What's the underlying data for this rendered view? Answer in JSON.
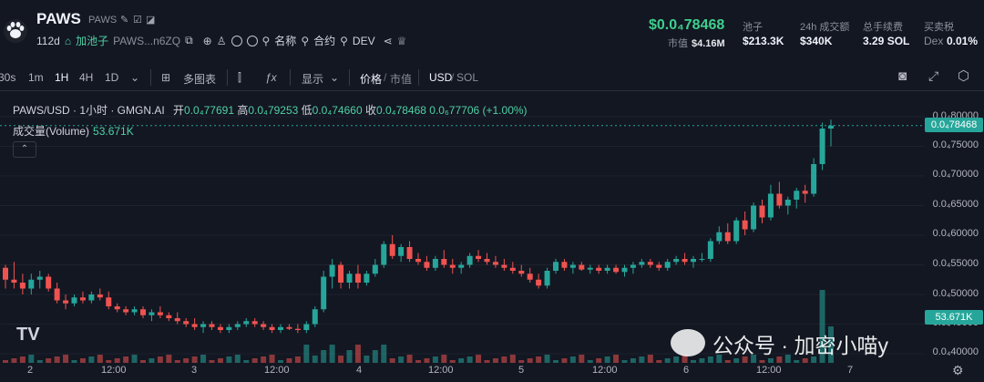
{
  "header": {
    "title": "PAWS",
    "subtitle": "PAWS",
    "age": "112d",
    "pool_tag": "加池子",
    "address": "PAWS...n6ZQ",
    "name_label": "名称",
    "contract_label": "合约",
    "dev_label": "DEV",
    "price": "$0.0₄78468",
    "mcap_label": "市值",
    "mcap_value": "$4.16M",
    "stats": [
      {
        "label": "池子",
        "value": "$213.3K"
      },
      {
        "label": "24h 成交额",
        "value": "$340K"
      },
      {
        "label": "总手续费",
        "value": "3.29 SOL"
      },
      {
        "label": "买卖税",
        "value": "0.01%",
        "prefix": "Dex"
      }
    ]
  },
  "toolbar": {
    "intervals": [
      "30s",
      "1m",
      "1H",
      "4H",
      "1D"
    ],
    "active_interval": "1H",
    "multi_chart": "多图表",
    "display": "显示",
    "price": "价格",
    "mcap": "市值",
    "usd": "USD",
    "sol": "SOL"
  },
  "legend": {
    "symbol": "PAWS/USD · 1小时 · GMGN.AI",
    "open_label": "开",
    "open": "0.0₄77691",
    "high_label": "高",
    "high": "0.0₄79253",
    "low_label": "低",
    "low": "0.0₄74660",
    "close_label": "收",
    "close": "0.0₄78468",
    "change": "0.0₆77706 (+1.00%)",
    "volume_label": "成交量(Volume)",
    "volume_value": "53.671K"
  },
  "yaxis": [
    "0.0₄80000",
    "0.0₄75000",
    "0.0₄70000",
    "0.0₄65000",
    "0.0₄60000",
    "0.0₄55000",
    "0.0₄50000",
    "0.0₄45000",
    "0.0₄40000"
  ],
  "price_tag": "0.0₄78468",
  "volume_tag": "53.671K",
  "xaxis": [
    "2",
    "12:00",
    "3",
    "12:00",
    "4",
    "12:00",
    "5",
    "12:00",
    "6",
    "12:00",
    "7"
  ],
  "watermark": "公众号 · 加密小喵y",
  "colors": {
    "up": "#26a69a",
    "down": "#ef5350",
    "price": "#3ecf8e"
  },
  "chart_data": {
    "type": "candlestick",
    "x_unit": "1h",
    "candles": [
      [
        5.45,
        5.5,
        5.1,
        5.25
      ],
      [
        5.25,
        5.55,
        5.1,
        5.2
      ],
      [
        5.2,
        5.35,
        5.0,
        5.1
      ],
      [
        5.1,
        5.35,
        5.0,
        5.25
      ],
      [
        5.25,
        5.4,
        5.1,
        5.3
      ],
      [
        5.3,
        5.35,
        5.05,
        5.1
      ],
      [
        5.1,
        5.2,
        4.85,
        4.9
      ],
      [
        4.9,
        5.0,
        4.75,
        4.85
      ],
      [
        4.85,
        5.0,
        4.8,
        4.95
      ],
      [
        4.95,
        5.05,
        4.85,
        4.9
      ],
      [
        4.9,
        5.05,
        4.85,
        5.0
      ],
      [
        5.0,
        5.1,
        4.9,
        4.95
      ],
      [
        4.95,
        5.05,
        4.75,
        4.8
      ],
      [
        4.8,
        4.85,
        4.7,
        4.75
      ],
      [
        4.75,
        4.8,
        4.65,
        4.7
      ],
      [
        4.7,
        4.8,
        4.65,
        4.75
      ],
      [
        4.75,
        4.8,
        4.6,
        4.65
      ],
      [
        4.65,
        4.75,
        4.55,
        4.7
      ],
      [
        4.7,
        4.8,
        4.6,
        4.65
      ],
      [
        4.65,
        4.7,
        4.55,
        4.6
      ],
      [
        4.6,
        4.7,
        4.5,
        4.55
      ],
      [
        4.55,
        4.6,
        4.45,
        4.5
      ],
      [
        4.5,
        4.6,
        4.4,
        4.45
      ],
      [
        4.45,
        4.55,
        4.35,
        4.5
      ],
      [
        4.5,
        4.55,
        4.4,
        4.45
      ],
      [
        4.45,
        4.5,
        4.35,
        4.4
      ],
      [
        4.4,
        4.5,
        4.35,
        4.45
      ],
      [
        4.45,
        4.55,
        4.4,
        4.5
      ],
      [
        4.5,
        4.6,
        4.45,
        4.55
      ],
      [
        4.55,
        4.6,
        4.45,
        4.5
      ],
      [
        4.5,
        4.55,
        4.4,
        4.45
      ],
      [
        4.45,
        4.5,
        4.35,
        4.4
      ],
      [
        4.4,
        4.5,
        4.35,
        4.45
      ],
      [
        4.45,
        4.5,
        4.4,
        4.42
      ],
      [
        4.42,
        4.5,
        4.35,
        4.4
      ],
      [
        4.4,
        4.55,
        4.35,
        4.5
      ],
      [
        4.5,
        4.8,
        4.45,
        4.75
      ],
      [
        4.75,
        5.4,
        4.7,
        5.3
      ],
      [
        5.3,
        5.6,
        5.1,
        5.5
      ],
      [
        5.5,
        5.55,
        5.1,
        5.2
      ],
      [
        5.2,
        5.4,
        5.1,
        5.35
      ],
      [
        5.35,
        5.5,
        5.1,
        5.2
      ],
      [
        5.2,
        5.4,
        5.15,
        5.35
      ],
      [
        5.35,
        5.6,
        5.3,
        5.5
      ],
      [
        5.5,
        5.9,
        5.45,
        5.85
      ],
      [
        5.85,
        6.0,
        5.6,
        5.65
      ],
      [
        5.65,
        5.85,
        5.55,
        5.8
      ],
      [
        5.8,
        5.9,
        5.55,
        5.6
      ],
      [
        5.6,
        5.7,
        5.5,
        5.55
      ],
      [
        5.55,
        5.65,
        5.4,
        5.45
      ],
      [
        5.45,
        5.65,
        5.4,
        5.6
      ],
      [
        5.6,
        5.75,
        5.45,
        5.5
      ],
      [
        5.5,
        5.6,
        5.35,
        5.45
      ],
      [
        5.45,
        5.55,
        5.35,
        5.5
      ],
      [
        5.5,
        5.7,
        5.45,
        5.65
      ],
      [
        5.65,
        5.75,
        5.55,
        5.6
      ],
      [
        5.6,
        5.7,
        5.5,
        5.55
      ],
      [
        5.55,
        5.65,
        5.45,
        5.5
      ],
      [
        5.5,
        5.6,
        5.4,
        5.45
      ],
      [
        5.45,
        5.55,
        5.35,
        5.4
      ],
      [
        5.4,
        5.5,
        5.3,
        5.35
      ],
      [
        5.35,
        5.45,
        5.2,
        5.25
      ],
      [
        5.25,
        5.35,
        5.1,
        5.15
      ],
      [
        5.15,
        5.45,
        5.1,
        5.4
      ],
      [
        5.4,
        5.6,
        5.35,
        5.55
      ],
      [
        5.55,
        5.6,
        5.4,
        5.45
      ],
      [
        5.45,
        5.55,
        5.35,
        5.5
      ],
      [
        5.5,
        5.55,
        5.4,
        5.42
      ],
      [
        5.42,
        5.5,
        5.35,
        5.45
      ],
      [
        5.45,
        5.5,
        5.35,
        5.4
      ],
      [
        5.4,
        5.5,
        5.35,
        5.45
      ],
      [
        5.45,
        5.5,
        5.35,
        5.38
      ],
      [
        5.38,
        5.5,
        5.3,
        5.45
      ],
      [
        5.45,
        5.55,
        5.35,
        5.5
      ],
      [
        5.5,
        5.6,
        5.45,
        5.55
      ],
      [
        5.55,
        5.6,
        5.45,
        5.5
      ],
      [
        5.5,
        5.55,
        5.4,
        5.45
      ],
      [
        5.45,
        5.6,
        5.4,
        5.55
      ],
      [
        5.55,
        5.65,
        5.5,
        5.6
      ],
      [
        5.6,
        5.7,
        5.5,
        5.55
      ],
      [
        5.55,
        5.65,
        5.45,
        5.6
      ],
      [
        5.6,
        5.7,
        5.55,
        5.6
      ],
      [
        5.6,
        5.95,
        5.55,
        5.9
      ],
      [
        5.9,
        6.15,
        5.85,
        6.05
      ],
      [
        6.05,
        6.2,
        5.85,
        5.9
      ],
      [
        5.9,
        6.3,
        5.85,
        6.25
      ],
      [
        6.25,
        6.4,
        6.0,
        6.1
      ],
      [
        6.1,
        6.55,
        6.05,
        6.5
      ],
      [
        6.5,
        6.6,
        6.2,
        6.3
      ],
      [
        6.3,
        6.85,
        6.25,
        6.7
      ],
      [
        6.7,
        6.9,
        6.45,
        6.5
      ],
      [
        6.5,
        6.65,
        6.35,
        6.6
      ],
      [
        6.6,
        6.8,
        6.45,
        6.75
      ],
      [
        6.75,
        6.85,
        6.55,
        6.7
      ],
      [
        6.7,
        7.3,
        6.65,
        7.2
      ],
      [
        7.2,
        7.9,
        7.1,
        7.8
      ],
      [
        7.8,
        7.95,
        7.5,
        7.85
      ]
    ]
  }
}
